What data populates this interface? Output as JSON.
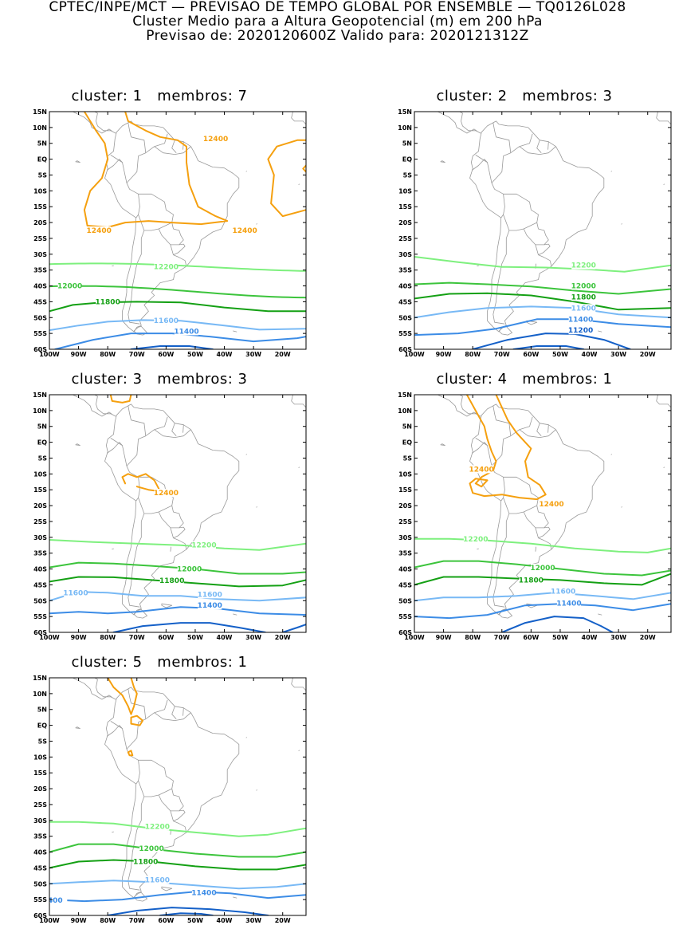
{
  "header": {
    "line1": "CPTEC/INPE/MCT — PREVISAO DE TEMPO GLOBAL POR ENSEMBLE — TQ0126L028",
    "line2": "Cluster Medio para a Altura Geopotencial (m) em 200 hPa",
    "line3": "Previsao de: 2020120600Z    Valido para: 2020121312Z"
  },
  "axes": {
    "lat_ticks": [
      "15N",
      "10N",
      "5N",
      "EQ",
      "5S",
      "10S",
      "15S",
      "20S",
      "25S",
      "30S",
      "35S",
      "40S",
      "45S",
      "50S",
      "55S",
      "60S"
    ],
    "lon_ticks": [
      "100W",
      "90W",
      "80W",
      "70W",
      "60W",
      "50W",
      "40W",
      "30W",
      "20W"
    ]
  },
  "colors": {
    "c12400": "#f5a00f",
    "c12200": "#7ef07e",
    "c12000": "#3cc43c",
    "c11800": "#14a014",
    "c11600": "#78b9f5",
    "c11400": "#3c8ce6",
    "c11200": "#1460c8",
    "coast": "#9a9a9a"
  },
  "panels": [
    {
      "title": "cluster: 1   membros: 7",
      "labels": [
        {
          "text": "12400",
          "c": "c12400"
        },
        {
          "text": "12400",
          "c": "c12400"
        },
        {
          "text": "12400",
          "c": "c12400"
        },
        {
          "text": "12400",
          "c": "c12400"
        },
        {
          "text": "12200",
          "c": "c12200"
        },
        {
          "text": "12000",
          "c": "c12000"
        },
        {
          "text": "11800",
          "c": "c11800"
        },
        {
          "text": "11600",
          "c": "c11600"
        },
        {
          "text": "11400",
          "c": "c11400"
        }
      ]
    },
    {
      "title": "cluster: 2   membros: 3",
      "labels": [
        {
          "text": "12200",
          "c": "c12200"
        },
        {
          "text": "12000",
          "c": "c12000"
        },
        {
          "text": "11800",
          "c": "c11800"
        },
        {
          "text": "11600",
          "c": "c11600"
        },
        {
          "text": "11400",
          "c": "c11400"
        },
        {
          "text": "11200",
          "c": "c11200"
        }
      ]
    },
    {
      "title": "cluster: 3   membros: 3",
      "labels": [
        {
          "text": "12400",
          "c": "c12400"
        },
        {
          "text": "12200",
          "c": "c12200"
        },
        {
          "text": "12000",
          "c": "c12000"
        },
        {
          "text": "11800",
          "c": "c11800"
        },
        {
          "text": "11600",
          "c": "c11600"
        },
        {
          "text": "11600",
          "c": "c11600"
        },
        {
          "text": "11400",
          "c": "c11400"
        }
      ]
    },
    {
      "title": "cluster: 4   membros: 1",
      "labels": [
        {
          "text": "12400",
          "c": "c12400"
        },
        {
          "text": "12400",
          "c": "c12400"
        },
        {
          "text": "12200",
          "c": "c12200"
        },
        {
          "text": "12000",
          "c": "c12000"
        },
        {
          "text": "11800",
          "c": "c11800"
        },
        {
          "text": "11600",
          "c": "c11600"
        },
        {
          "text": "11400",
          "c": "c11400"
        }
      ]
    },
    {
      "title": "cluster: 5   membros: 1",
      "labels": [
        {
          "text": "12200",
          "c": "c12200"
        },
        {
          "text": "12000",
          "c": "c12000"
        },
        {
          "text": "11800",
          "c": "c11800"
        },
        {
          "text": "11600",
          "c": "c11600"
        },
        {
          "text": "11400",
          "c": "c11400"
        },
        {
          "text": "400",
          "c": "c11400"
        }
      ]
    }
  ]
}
